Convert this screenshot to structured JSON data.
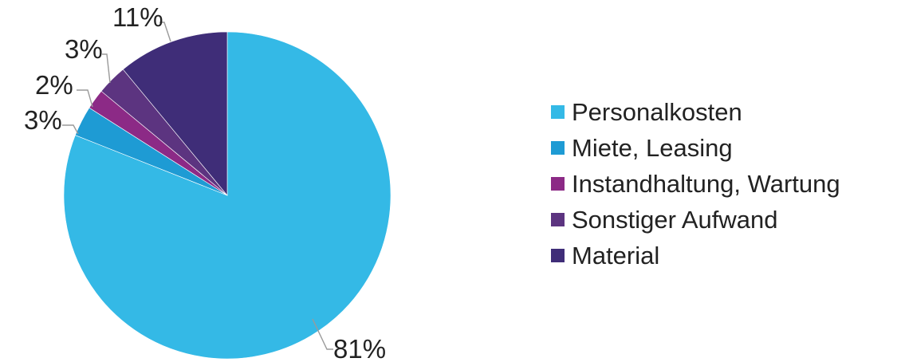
{
  "chart_data": {
    "type": "pie",
    "title": "",
    "start": "12 o'clock, clockwise",
    "slices": [
      {
        "label": "Personalkosten",
        "value": 81,
        "value_label": "81%",
        "color": "#34b9e6"
      },
      {
        "label": "Miete, Leasing",
        "value": 3,
        "value_label": "3%",
        "color": "#1e9bd4"
      },
      {
        "label": "Instandhaltung, Wartung",
        "value": 2,
        "value_label": "2%",
        "color": "#8c2a86"
      },
      {
        "label": "Sonstiger Aufwand",
        "value": 3,
        "value_label": "3%",
        "color": "#5c3480"
      },
      {
        "label": "Material",
        "value": 11,
        "value_label": "11%",
        "color": "#3f2d78"
      }
    ],
    "legend_position": "right"
  },
  "legend": {
    "items": [
      {
        "label": "Personalkosten",
        "color": "#34b9e6"
      },
      {
        "label": "Miete, Leasing",
        "color": "#1e9bd4"
      },
      {
        "label": "Instandhaltung, Wartung",
        "color": "#8c2a86"
      },
      {
        "label": "Sonstiger Aufwand",
        "color": "#5c3480"
      },
      {
        "label": "Material",
        "color": "#3f2d78"
      }
    ]
  }
}
